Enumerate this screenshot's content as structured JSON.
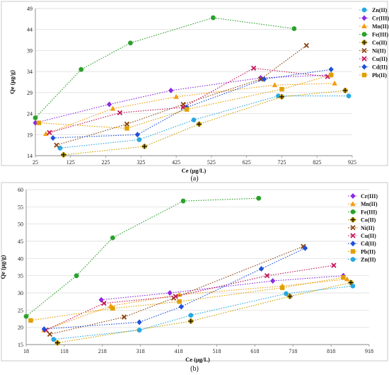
{
  "chart_data": [
    {
      "type": "line",
      "panel_label": "(a)",
      "xlabel": "Ce (μg/L)",
      "ylabel": "Qe (μg/g)",
      "xlim": [
        25,
        925
      ],
      "ylim": [
        14,
        49
      ],
      "xticks": [
        "25",
        "125",
        "225",
        "325",
        "425",
        "525",
        "625",
        "725",
        "825",
        "925"
      ],
      "yticks": [
        "14",
        "19",
        "24",
        "29",
        "34",
        "39",
        "44",
        "49"
      ],
      "grid": "horizontal",
      "legend_position": "right",
      "series": [
        {
          "name": "Zn(II)",
          "color": "#29a8e0",
          "marker": "circle",
          "x": [
            95,
            320,
            475,
            715,
            915
          ],
          "y": [
            15.8,
            17.8,
            22.5,
            28.2,
            28.2
          ]
        },
        {
          "name": "Cr(III)",
          "color": "#8a2be2",
          "marker": "diamond",
          "x": [
            25,
            235,
            410,
            665,
            865
          ],
          "y": [
            21.8,
            26.2,
            29.5,
            32.5,
            33.2
          ]
        },
        {
          "name": "Mn(II)",
          "color": "#f39c12",
          "marker": "triangle",
          "x": [
            55,
            245,
            425,
            705,
            875
          ],
          "y": [
            19.2,
            25.2,
            28.0,
            30.8,
            31.2
          ]
        },
        {
          "name": "Fe(III)",
          "color": "#2ca02c",
          "marker": "circle",
          "x": [
            25,
            155,
            295,
            530,
            760
          ],
          "y": [
            23.0,
            34.5,
            40.8,
            46.8,
            44.2
          ]
        },
        {
          "name": "Co(II)",
          "color": "#c8a000",
          "marker": "cross-circle",
          "x": [
            105,
            335,
            490,
            725,
            905
          ],
          "y": [
            14.2,
            16.2,
            21.5,
            28.0,
            29.5
          ]
        },
        {
          "name": "Ni(II)",
          "color": "#8b4513",
          "marker": "x",
          "x": [
            85,
            285,
            445,
            665,
            795
          ],
          "y": [
            16.5,
            21.5,
            26.2,
            32.2,
            40.2
          ]
        },
        {
          "name": "Cu(II)",
          "color": "#c2185b",
          "marker": "x",
          "x": [
            65,
            265,
            445,
            645,
            855
          ],
          "y": [
            19.5,
            24.2,
            25.5,
            34.8,
            32.8
          ]
        },
        {
          "name": "Cd(II)",
          "color": "#1f4fd8",
          "marker": "diamond",
          "x": [
            75,
            315,
            455,
            675,
            865
          ],
          "y": [
            18.2,
            19.0,
            25.5,
            32.2,
            34.5
          ]
        },
        {
          "name": "Pb(II)",
          "color": "#e0a000",
          "marker": "square",
          "x": [
            35,
            285,
            455,
            725,
            865
          ],
          "y": [
            21.8,
            20.5,
            25.0,
            29.8,
            33.2
          ]
        }
      ]
    },
    {
      "type": "line",
      "panel_label": "(b)",
      "xlabel": "Ce (μg/L)",
      "ylabel": "Qe (μg/g)",
      "xlim": [
        18,
        918
      ],
      "ylim": [
        15,
        60
      ],
      "xticks": [
        "18",
        "118",
        "218",
        "318",
        "418",
        "518",
        "618",
        "718",
        "818",
        "918"
      ],
      "yticks": [
        "15",
        "20",
        "25",
        "30",
        "35",
        "40",
        "45",
        "50",
        "55",
        "60"
      ],
      "grid": "horizontal",
      "legend_position": "right",
      "series": [
        {
          "name": "Cr(III)",
          "color": "#8a2be2",
          "marker": "diamond",
          "x": [
            215,
            395,
            665,
            850
          ],
          "y": [
            28.0,
            30.0,
            33.5,
            35.0
          ]
        },
        {
          "name": "Mn(II)",
          "color": "#f39c12",
          "marker": "triangle",
          "x": [
            65,
            240,
            420,
            690,
            860
          ],
          "y": [
            19.2,
            26.2,
            29.5,
            32.0,
            34.0
          ]
        },
        {
          "name": "Fe(III)",
          "color": "#2ca02c",
          "marker": "circle",
          "x": [
            18,
            150,
            245,
            430,
            628
          ],
          "y": [
            23.2,
            35.0,
            46.0,
            56.7,
            57.5
          ]
        },
        {
          "name": "Co(II)",
          "color": "#c8a000",
          "marker": "cross-circle",
          "x": [
            100,
            450,
            710,
            870
          ],
          "y": [
            15.5,
            21.8,
            29.0,
            33.0
          ]
        },
        {
          "name": "Ni(II)",
          "color": "#8b4513",
          "marker": "x",
          "x": [
            80,
            275,
            405,
            745
          ],
          "y": [
            18.0,
            23.0,
            28.5,
            43.5
          ]
        },
        {
          "name": "Cu(II)",
          "color": "#c2185b",
          "marker": "x",
          "x": [
            70,
            222,
            410,
            650,
            825
          ],
          "y": [
            19.2,
            27.0,
            29.0,
            35.0,
            38.0
          ]
        },
        {
          "name": "Cd(II)",
          "color": "#1f4fd8",
          "marker": "diamond",
          "x": [
            65,
            315,
            425,
            635,
            750
          ],
          "y": [
            19.5,
            21.5,
            26.0,
            37.0,
            43.0
          ]
        },
        {
          "name": "Pb(II)",
          "color": "#e0a000",
          "marker": "square",
          "x": [
            30,
            245,
            420,
            690,
            850
          ],
          "y": [
            22.0,
            25.5,
            27.5,
            31.5,
            34.5
          ]
        },
        {
          "name": "Zn(II)",
          "color": "#29a8e0",
          "marker": "circle",
          "x": [
            90,
            315,
            450,
            700,
            875
          ],
          "y": [
            16.5,
            19.2,
            23.5,
            29.8,
            32.0
          ]
        }
      ]
    }
  ]
}
